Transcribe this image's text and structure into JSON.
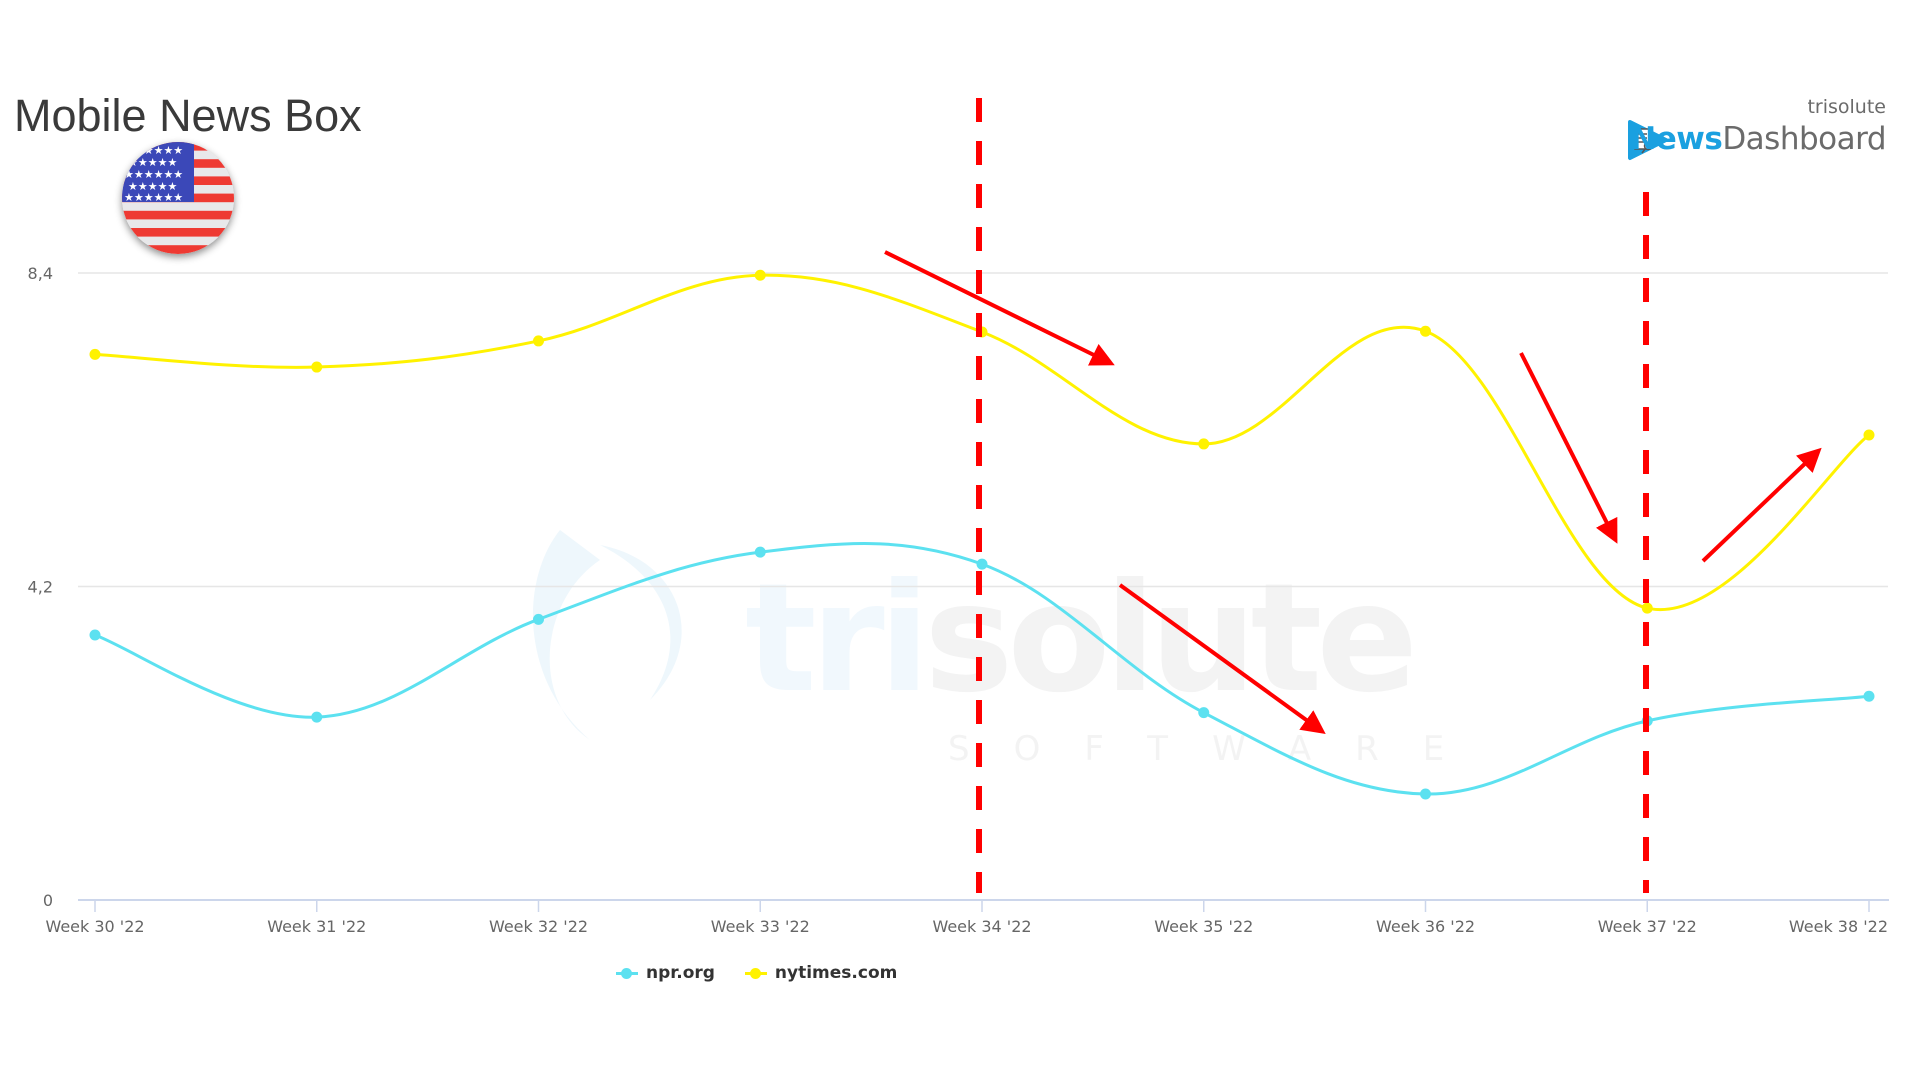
{
  "header": {
    "title": "Mobile News Box",
    "country_flag": "us-flag-icon"
  },
  "logo": {
    "company": "trisolute",
    "product_part1": "News",
    "product_part2": "Dashboard",
    "icon": "news-document-play-icon"
  },
  "watermark": {
    "text_part1": "tri",
    "text_part2": "solute",
    "subtext": "SOFTWARE"
  },
  "colors": {
    "npr": "#5ce1f0",
    "nytimes": "#fff200",
    "annotation": "#ff0000",
    "grid": "#e6e6e6",
    "axis": "#ccd6eb",
    "title": "#3a3a3a"
  },
  "chart_data": {
    "type": "line",
    "title": "Mobile News Box",
    "xlabel": "",
    "ylabel": "",
    "categories": [
      "Week 30 '22",
      "Week 31 '22",
      "Week 32 '22",
      "Week 33 '22",
      "Week 34 '22",
      "Week 35 '22",
      "Week 36 '22",
      "Week 37 '22",
      "Week 38 '22"
    ],
    "series": [
      {
        "name": "npr.org",
        "color": "#5ce1f0",
        "values": [
          3.55,
          2.45,
          3.76,
          4.66,
          4.5,
          2.51,
          1.42,
          2.4,
          2.73
        ]
      },
      {
        "name": "nytimes.com",
        "color": "#fff200",
        "values": [
          7.31,
          7.14,
          7.49,
          8.37,
          7.61,
          6.11,
          7.62,
          3.91,
          6.23
        ]
      }
    ],
    "yticks": [
      0,
      4.2,
      8.4
    ],
    "ytick_labels": [
      "0",
      "4,2",
      "8,4"
    ],
    "ylim": [
      0,
      8.4
    ],
    "grid": true,
    "legend_position": "bottom-left",
    "annotations": [
      {
        "type": "dashed-vline",
        "at": "Week 34 '22"
      },
      {
        "type": "dashed-vline",
        "at": "Week 37 '22"
      },
      {
        "type": "arrow",
        "direction": "down",
        "near": "nytimes.com Week 34-35"
      },
      {
        "type": "arrow",
        "direction": "down",
        "near": "npr.org Week 34-35"
      },
      {
        "type": "arrow",
        "direction": "down",
        "near": "nytimes.com Week 36-37"
      },
      {
        "type": "arrow",
        "direction": "up",
        "near": "nytimes.com Week 37-38"
      }
    ]
  },
  "legend": {
    "items": [
      {
        "label": "npr.org"
      },
      {
        "label": "nytimes.com"
      }
    ]
  }
}
